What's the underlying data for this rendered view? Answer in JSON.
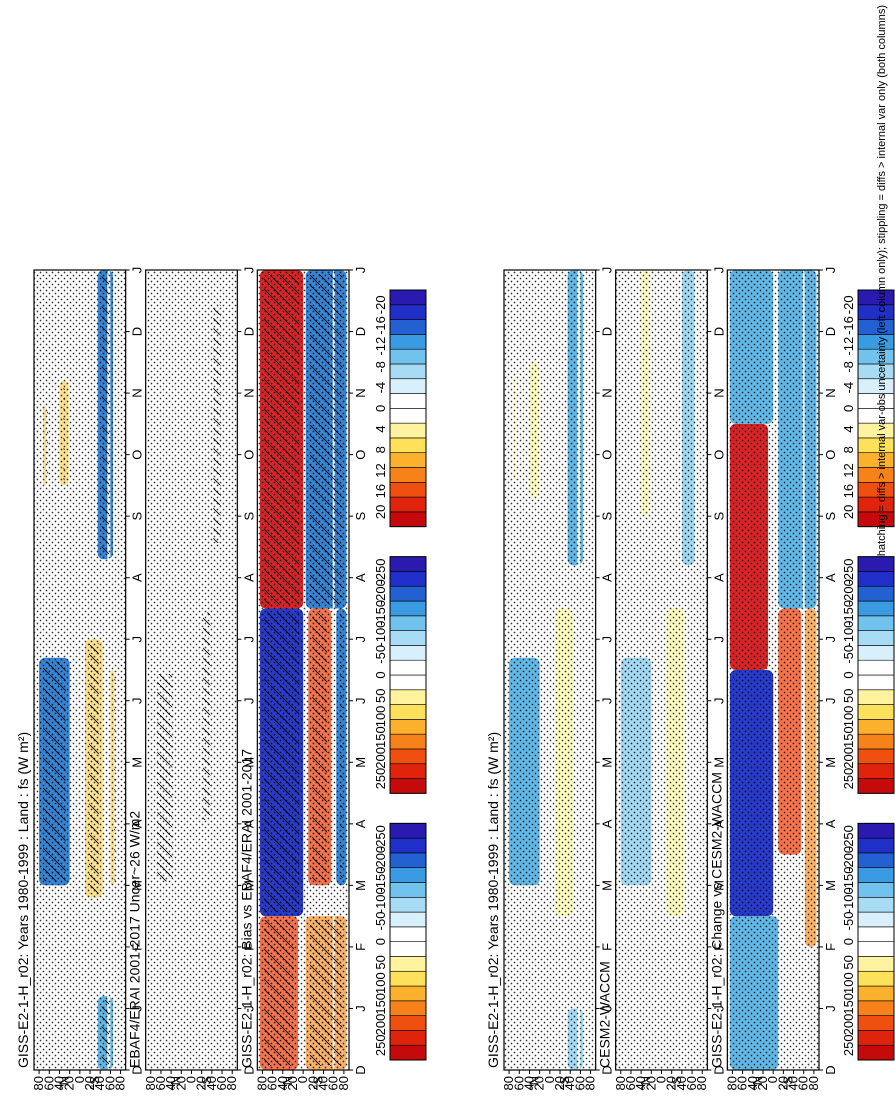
{
  "chart_data": [
    {
      "type": "heatmap",
      "panel": "left-top",
      "title": "GISS-E2-1-H_r02: Years 1980-1999 : Land : fs (W m²)",
      "xticks": [
        "D",
        "J",
        "F",
        "M",
        "A",
        "M",
        "J",
        "J",
        "A",
        "S",
        "O",
        "N",
        "D",
        "J"
      ],
      "yticks": [
        "80",
        "60",
        "40",
        "20",
        "0",
        "20",
        "40",
        "60",
        "80"
      ],
      "ylabel_n": "°N",
      "ylabel_s": "°S",
      "colorbar": [
        "250",
        "200",
        "150",
        "100",
        "50",
        "0",
        "-50",
        "-100",
        "-150",
        "-200",
        "-250"
      ],
      "hatched": true,
      "stippled": true,
      "blobs": [
        {
          "m0": 3.0,
          "m1": 6.7,
          "l0": 20,
          "l1": 80,
          "level": -4
        },
        {
          "m0": 9.5,
          "m1": 11.2,
          "l0": 22,
          "l1": 40,
          "level": 2
        },
        {
          "m0": 9.5,
          "m1": 10.8,
          "l0": 66,
          "l1": 72,
          "level": 2
        },
        {
          "m0": 0,
          "m1": 1.2,
          "l0": -65,
          "l1": -35,
          "level": -3
        },
        {
          "m0": 8.3,
          "m1": 13,
          "l0": -65,
          "l1": -35,
          "level": -4
        },
        {
          "m0": 2.8,
          "m1": 7.0,
          "l0": -45,
          "l1": -10,
          "level": 2
        },
        {
          "m0": 3.0,
          "m1": 6.5,
          "l0": -68,
          "l1": -60,
          "level": 2
        },
        {
          "m0": 0,
          "m1": 13,
          "l0": -60,
          "l1": -54,
          "level": 0
        }
      ]
    },
    {
      "type": "heatmap",
      "panel": "left-middle",
      "title": "EBAF4/ERAI 2001-2017 Uncer~26 W/m2",
      "xticks": [
        "D",
        "J",
        "F",
        "M",
        "A",
        "M",
        "J",
        "J",
        "A",
        "S",
        "O",
        "N",
        "D",
        "J"
      ],
      "yticks": [
        "80",
        "60",
        "40",
        "20",
        "0",
        "20",
        "40",
        "60",
        "80"
      ],
      "ylabel_n": "°N",
      "ylabel_s": "°S",
      "colorbar": [
        "250",
        "200",
        "150",
        "100",
        "50",
        "0",
        "-50",
        "-100",
        "-150",
        "-200",
        "-250"
      ],
      "hatched": true,
      "stippled": true,
      "blobs": []
    },
    {
      "type": "heatmap",
      "panel": "left-bottom",
      "title": "GISS-E2-1-H_r02: Bias vs EBAF4/ERAI 2001-2017",
      "xticks": [
        "D",
        "J",
        "F",
        "M",
        "A",
        "M",
        "J",
        "J",
        "A",
        "S",
        "O",
        "N",
        "D",
        "J"
      ],
      "yticks": [
        "80",
        "60",
        "40",
        "20",
        "0",
        "20",
        "40",
        "60",
        "80"
      ],
      "ylabel_n": "°N",
      "ylabel_s": "°S",
      "colorbar": [
        "20",
        "16",
        "12",
        "8",
        "4",
        "0",
        "-4",
        "-8",
        "-12",
        "-16",
        "-20"
      ],
      "hatched": true,
      "stippled": true,
      "blobs": [
        {
          "m0": 0,
          "m1": 2.5,
          "l0": 10,
          "l1": 85,
          "level": 4
        },
        {
          "m0": 0,
          "m1": 2.5,
          "l0": -85,
          "l1": -5,
          "level": 3
        },
        {
          "m0": 2.5,
          "m1": 7.5,
          "l0": 0,
          "l1": 85,
          "level": -5
        },
        {
          "m0": 3.0,
          "m1": 7.5,
          "l0": -55,
          "l1": -10,
          "level": 4
        },
        {
          "m0": 3.0,
          "m1": 7.5,
          "l0": -85,
          "l1": -65,
          "level": -4
        },
        {
          "m0": 7.5,
          "m1": 13,
          "l0": 0,
          "l1": 85,
          "level": 5
        },
        {
          "m0": 7.5,
          "m1": 13,
          "l0": -85,
          "l1": -5,
          "level": -4
        },
        {
          "m0": 0,
          "m1": 13,
          "l0": -62,
          "l1": -58,
          "level": 0
        }
      ]
    },
    {
      "type": "heatmap",
      "panel": "right-top",
      "title": "GISS-E2-1-H_r02: Years 1980-1999 : Land : fs (W m²)",
      "xticks": [
        "D",
        "J",
        "F",
        "M",
        "A",
        "M",
        "J",
        "J",
        "A",
        "S",
        "O",
        "N",
        "D",
        "J"
      ],
      "yticks": [
        "80",
        "60",
        "40",
        "20",
        "0",
        "20",
        "40",
        "60",
        "80"
      ],
      "ylabel_n": "°N",
      "ylabel_s": "°S",
      "colorbar": [
        "250",
        "200",
        "150",
        "100",
        "50",
        "0",
        "-50",
        "-100",
        "-150",
        "-200",
        "-250"
      ],
      "hatched": false,
      "stippled": true,
      "blobs": [
        {
          "m0": 3.0,
          "m1": 6.7,
          "l0": 20,
          "l1": 80,
          "level": -3
        },
        {
          "m0": 9.3,
          "m1": 11.5,
          "l0": 22,
          "l1": 40,
          "level": 1
        },
        {
          "m0": 9.6,
          "m1": 11.3,
          "l0": 68,
          "l1": 72,
          "level": 1
        },
        {
          "m0": 8.2,
          "m1": 13,
          "l0": -65,
          "l1": -35,
          "level": -3
        },
        {
          "m0": 0,
          "m1": 1.0,
          "l0": -65,
          "l1": -35,
          "level": -2
        },
        {
          "m0": 2.5,
          "m1": 7.5,
          "l0": -45,
          "l1": -10,
          "level": 1
        },
        {
          "m0": 0,
          "m1": 13,
          "l0": -60,
          "l1": -54,
          "level": 0
        }
      ]
    },
    {
      "type": "heatmap",
      "panel": "right-middle",
      "title": "CESM2-WACCM",
      "xticks": [
        "D",
        "J",
        "F",
        "M",
        "A",
        "M",
        "J",
        "J",
        "A",
        "S",
        "O",
        "N",
        "D",
        "J"
      ],
      "yticks": [
        "80",
        "60",
        "40",
        "20",
        "0",
        "20",
        "40",
        "60",
        "80"
      ],
      "ylabel_n": "°N",
      "ylabel_s": "°S",
      "colorbar": [
        "250",
        "200",
        "150",
        "100",
        "50",
        "0",
        "-50",
        "-100",
        "-150",
        "-200",
        "-250"
      ],
      "hatched": false,
      "stippled": true,
      "blobs": [
        {
          "m0": 3.0,
          "m1": 6.7,
          "l0": 20,
          "l1": 80,
          "level": -2
        },
        {
          "m0": 9.0,
          "m1": 13,
          "l0": 25,
          "l1": 40,
          "level": 1
        },
        {
          "m0": 8.2,
          "m1": 13,
          "l0": -65,
          "l1": -40,
          "level": -2
        },
        {
          "m0": 2.5,
          "m1": 7.5,
          "l0": -45,
          "l1": -10,
          "level": 1
        }
      ]
    },
    {
      "type": "heatmap",
      "panel": "right-bottom",
      "title": "GISS-E2-1-H_r02: Change vs CESM2-WACCM",
      "xticks": [
        "D",
        "J",
        "F",
        "M",
        "A",
        "M",
        "J",
        "J",
        "A",
        "S",
        "O",
        "N",
        "D",
        "J"
      ],
      "yticks": [
        "80",
        "60",
        "40",
        "20",
        "0",
        "20",
        "40",
        "60",
        "80"
      ],
      "ylabel_n": "°N",
      "ylabel_s": "°S",
      "colorbar": [
        "20",
        "16",
        "12",
        "8",
        "4",
        "0",
        "-4",
        "-8",
        "-12",
        "-16",
        "-20"
      ],
      "hatched": false,
      "stippled": true,
      "blobs": [
        {
          "m0": 0,
          "m1": 2.5,
          "l0": -10,
          "l1": 85,
          "level": -3
        },
        {
          "m0": 2.5,
          "m1": 6.5,
          "l0": 0,
          "l1": 85,
          "level": -5
        },
        {
          "m0": 6.5,
          "m1": 10.5,
          "l0": 10,
          "l1": 85,
          "level": 5
        },
        {
          "m0": 10.5,
          "m1": 13,
          "l0": 0,
          "l1": 85,
          "level": -3
        },
        {
          "m0": 3.5,
          "m1": 7.5,
          "l0": -55,
          "l1": -10,
          "level": 4
        },
        {
          "m0": 7.5,
          "m1": 13,
          "l0": -85,
          "l1": -10,
          "level": -3
        },
        {
          "m0": 2.0,
          "m1": 7.5,
          "l0": -85,
          "l1": -62,
          "level": 3
        },
        {
          "m0": 0,
          "m1": 13,
          "l0": -62,
          "l1": -58,
          "level": 0
        }
      ]
    }
  ],
  "footnote": "hatching = diffs > internal var-obs uncertainty (left column only); stippling = diffs > internal var only (both columns)",
  "palette": {
    "5": "#d7191c",
    "4": "#f46d43",
    "3": "#fdae61",
    "2": "#fee08b",
    "1": "#ffffbf",
    "0": "#ffffff",
    "-1": "#d1ecf8",
    "-2": "#9fd8f2",
    "-3": "#5ab4e6",
    "-4": "#2b7fd6",
    "-5": "#1c30c8"
  },
  "colorbar_colors": [
    "#c40a0a",
    "#e0240c",
    "#f0500f",
    "#f8821a",
    "#fbb12c",
    "#fde15a",
    "#fff3a0",
    "#ffffff",
    "#ffffff",
    "#d7f0fb",
    "#a8dcf5",
    "#72c2ee",
    "#3a9be2",
    "#2361d3",
    "#1f2fc8",
    "#2a1ab0"
  ]
}
